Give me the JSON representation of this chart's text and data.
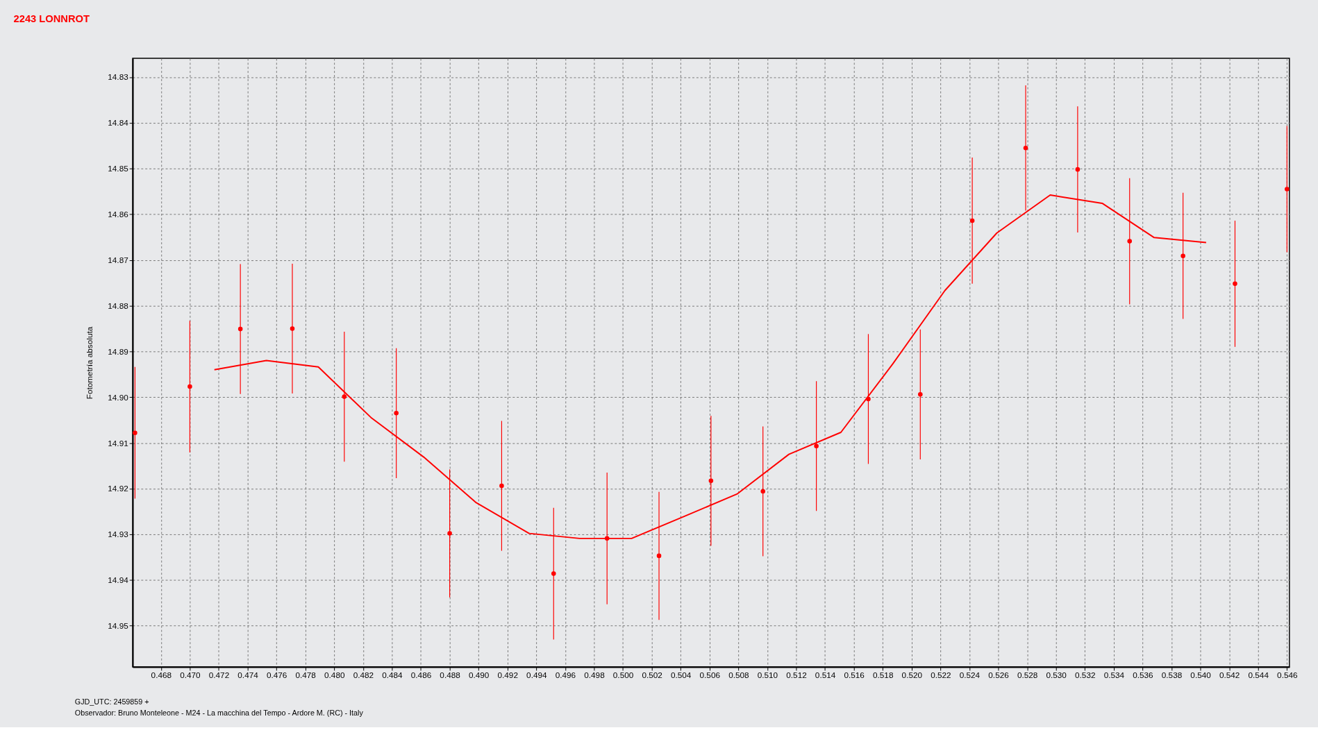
{
  "chart_data": {
    "type": "scatter",
    "title": "2243 LONNROT",
    "ylabel": "Fotometría absoluta",
    "annotations": [
      "GJD_UTC: 2459859 +",
      "Observador: Bruno Monteleone - M24 - La macchina del Tempo - Ardore M. (RC) - Italy"
    ],
    "xlim": [
      0.46604,
      0.54617
    ],
    "ylim": [
      14.959,
      14.8259
    ],
    "xticks": [
      0.468,
      {
        "value": 0.47,
        "label": "0.470"
      },
      0.472,
      0.474,
      0.476,
      0.478,
      {
        "value": 0.48,
        "label": "0.480"
      },
      0.482,
      0.484,
      0.486,
      0.488,
      {
        "value": 0.49,
        "label": "0.490"
      },
      0.492,
      0.494,
      0.496,
      0.498,
      {
        "value": 0.5,
        "label": "0.500"
      },
      0.502,
      0.504,
      0.506,
      0.508,
      {
        "value": 0.51,
        "label": "0.510"
      },
      0.512,
      0.514,
      0.516,
      0.518,
      {
        "value": 0.52,
        "label": "0.520"
      },
      0.522,
      0.524,
      0.526,
      0.528,
      {
        "value": 0.53,
        "label": "0.530"
      },
      0.532,
      0.534,
      0.536,
      0.538,
      {
        "value": 0.54,
        "label": "0.540"
      },
      0.542,
      0.544,
      0.546
    ],
    "yticks": [
      14.83,
      14.84,
      14.85,
      14.86,
      14.87,
      14.88,
      14.89,
      {
        "value": 14.9,
        "label": "14.90"
      },
      14.91,
      14.92,
      14.93,
      14.94,
      14.95
    ],
    "grid": true,
    "marker": "circle",
    "series": [
      {
        "color": "#ff0000",
        "x": [
          0.4662,
          0.47,
          0.4735,
          0.4771,
          0.4807,
          0.4843,
          0.488,
          0.4916,
          0.4952,
          0.4989,
          0.5025,
          0.5061,
          0.5097,
          0.5134,
          0.517,
          0.5206,
          0.5242,
          0.5279,
          0.5315,
          0.5351,
          0.5388,
          0.5424,
          0.546
        ],
        "values": [
          14.9078,
          14.8977,
          14.8851,
          14.885,
          14.8999,
          14.9035,
          14.9298,
          14.9194,
          14.9386,
          14.9309,
          14.9347,
          14.9183,
          14.9206,
          14.9107,
          14.9004,
          14.8994,
          14.8614,
          14.8455,
          14.8502,
          14.8659,
          14.8691,
          14.8752,
          14.8545
        ],
        "errors": [
          0.0144,
          0.0144,
          0.0142,
          0.0142,
          0.0142,
          0.0142,
          0.014,
          0.0142,
          0.0144,
          0.0144,
          0.014,
          0.0142,
          0.0142,
          0.0142,
          0.0142,
          0.0142,
          0.0138,
          0.0137,
          0.0138,
          0.0138,
          0.0138,
          0.0138,
          0.0138
        ]
      },
      {
        "type": "line",
        "color": "#ff0000",
        "line_style": "solid",
        "marker": "none",
        "x": [
          0.4717,
          0.4753,
          0.4789,
          0.4826,
          0.4862,
          0.4898,
          0.4935,
          0.497,
          0.5006,
          0.5043,
          0.5079,
          0.5115,
          0.5151,
          0.5187,
          0.5223,
          0.5259,
          0.5296,
          0.5332,
          0.5368,
          0.5404
        ],
        "values": [
          14.894,
          14.892,
          14.8934,
          14.9046,
          14.9131,
          14.923,
          14.9298,
          14.9309,
          14.9309,
          14.926,
          14.9212,
          14.9125,
          14.9077,
          14.8927,
          14.8767,
          14.8641,
          14.8558,
          14.8576,
          14.8651,
          14.8662
        ]
      }
    ]
  }
}
